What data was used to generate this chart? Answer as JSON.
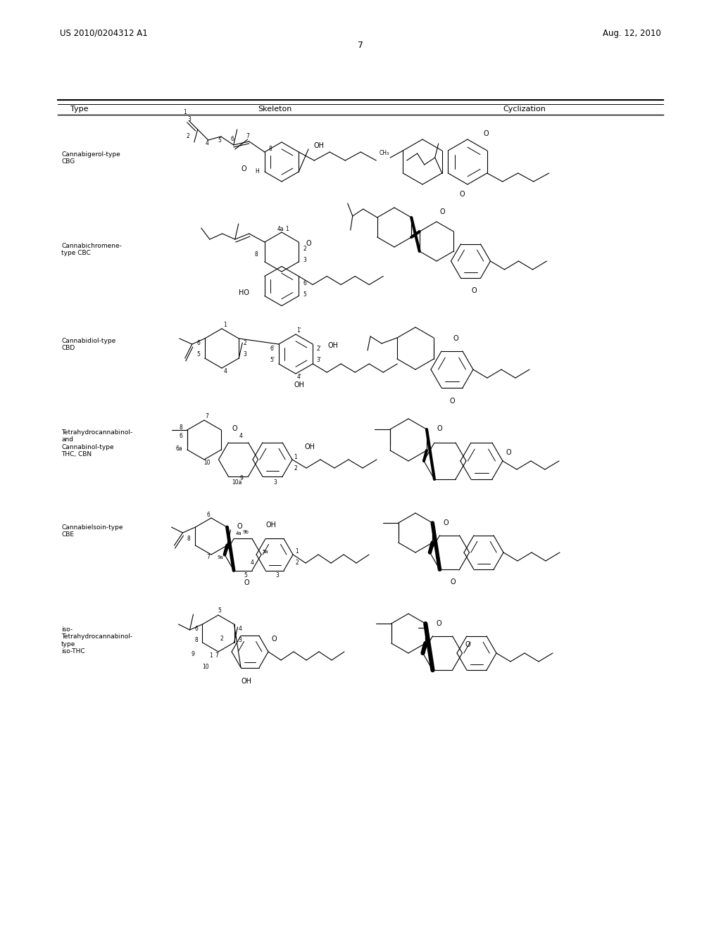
{
  "page_number": "7",
  "patent_number": "US 2010/0204312 A1",
  "patent_date": "Aug. 12, 2010",
  "background_color": "#ffffff",
  "text_color": "#000000",
  "table_headers": [
    "Type",
    "Skeleton",
    "Cyclization"
  ],
  "row_labels": [
    "Cannabigerol-type\nCBG",
    "Cannabichromene-\ntype CBC",
    "Cannabidiol-type\nCBD",
    "Tetrahydrocannabinol-\nand\nCannabinol-type\nTHC, CBN",
    "Cannabielsoin-type\nCBE",
    "iso-\nTetrahydrocannabinol-\ntype\niso-THC"
  ],
  "font_size_header": 8,
  "font_size_label": 6.5,
  "font_size_patent": 8.5,
  "font_size_page": 9
}
